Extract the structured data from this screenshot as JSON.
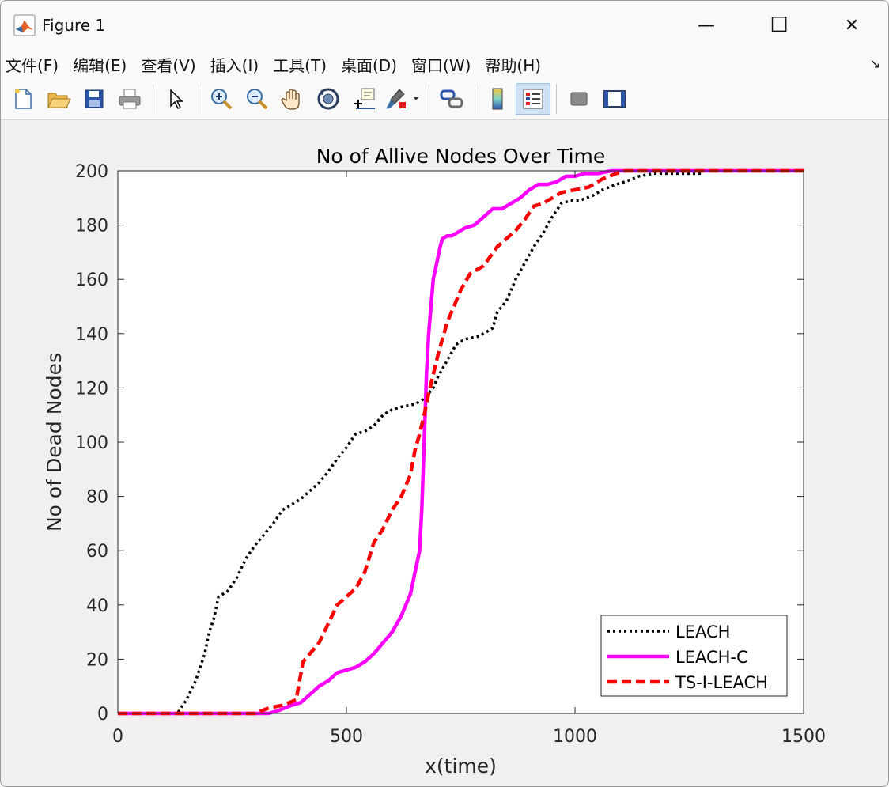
{
  "window": {
    "title": "Figure 1",
    "minimize_label": "—",
    "maximize_label": "☐",
    "close_label": "✕"
  },
  "menu": {
    "items": [
      "文件(F)",
      "编辑(E)",
      "查看(V)",
      "插入(I)",
      "工具(T)",
      "桌面(D)",
      "窗口(W)",
      "帮助(H)"
    ],
    "dock_arrow": "↘"
  },
  "toolbar": {
    "icons": [
      "new-figure-icon",
      "open-file-icon",
      "save-icon",
      "print-icon",
      "edit-plot-arrow-icon",
      "zoom-in-icon",
      "zoom-out-icon",
      "pan-hand-icon",
      "rotate-3d-icon",
      "data-cursor-icon",
      "brush-icon",
      "link-plot-icon",
      "colorbar-icon",
      "legend-icon",
      "hide-plot-tools-icon",
      "show-plot-tools-icon"
    ]
  },
  "colors": {
    "leach": "#000000",
    "leach_c": "#ff00ff",
    "ts_i_leach": "#ff0000",
    "axes_bg": "#ffffff",
    "figure_bg": "#f0f0f0"
  },
  "chart_data": {
    "type": "line",
    "title": "No of Allive Nodes Over Time",
    "xlabel": "x(time)",
    "ylabel": "No of Dead Nodes",
    "xlim": [
      0,
      1500
    ],
    "ylim": [
      0,
      200
    ],
    "xticks": [
      0,
      500,
      1000,
      1500
    ],
    "yticks": [
      0,
      20,
      40,
      60,
      80,
      100,
      120,
      140,
      160,
      180,
      200
    ],
    "grid": false,
    "legend_position": "bottom-right",
    "series": [
      {
        "name": "LEACH",
        "style": "dotted",
        "color": "#000000",
        "x": [
          0,
          130,
          150,
          170,
          190,
          200,
          210,
          220,
          240,
          260,
          280,
          300,
          320,
          340,
          360,
          380,
          400,
          420,
          440,
          460,
          480,
          500,
          520,
          540,
          560,
          580,
          600,
          620,
          650,
          670,
          690,
          700,
          720,
          740,
          760,
          790,
          820,
          830,
          850,
          870,
          890,
          910,
          930,
          950,
          970,
          990,
          1010,
          1040,
          1060,
          1090,
          1110,
          1140,
          1170,
          1200,
          1230,
          1280
        ],
        "y": [
          0,
          0,
          5,
          12,
          22,
          30,
          35,
          43,
          45,
          50,
          57,
          62,
          66,
          70,
          75,
          77,
          79,
          82,
          85,
          89,
          94,
          98,
          103,
          104,
          106,
          110,
          112,
          113,
          114,
          116,
          120,
          124,
          130,
          136,
          138,
          139,
          142,
          148,
          152,
          160,
          166,
          172,
          177,
          183,
          188,
          189,
          189,
          191,
          193,
          195,
          196,
          198,
          199,
          199,
          199,
          199
        ]
      },
      {
        "name": "LEACH-C",
        "style": "solid",
        "color": "#ff00ff",
        "x": [
          0,
          330,
          350,
          380,
          400,
          420,
          440,
          460,
          480,
          500,
          520,
          540,
          560,
          580,
          600,
          620,
          640,
          650,
          660,
          665,
          670,
          675,
          680,
          685,
          690,
          700,
          705,
          710,
          720,
          730,
          740,
          760,
          780,
          800,
          820,
          840,
          860,
          880,
          900,
          920,
          940,
          960,
          980,
          1000,
          1020,
          1050,
          1080,
          1100,
          1150,
          1200,
          1500
        ],
        "y": [
          0,
          0,
          1,
          3,
          4,
          7,
          10,
          12,
          15,
          16,
          17,
          19,
          22,
          26,
          30,
          36,
          44,
          52,
          60,
          76,
          100,
          125,
          140,
          150,
          160,
          168,
          172,
          175,
          176,
          176,
          177,
          179,
          180,
          183,
          186,
          186,
          188,
          190,
          193,
          195,
          195,
          196,
          198,
          198,
          199,
          199,
          200,
          200,
          200,
          200,
          200
        ]
      },
      {
        "name": "TS-I-LEACH",
        "style": "dashed",
        "color": "#ff0000",
        "x": [
          0,
          300,
          330,
          360,
          390,
          405,
          420,
          440,
          460,
          480,
          500,
          520,
          540,
          560,
          580,
          600,
          620,
          640,
          650,
          660,
          670,
          680,
          690,
          700,
          710,
          720,
          730,
          750,
          770,
          800,
          830,
          850,
          870,
          890,
          910,
          930,
          950,
          970,
          1000,
          1030,
          1060,
          1090,
          1110,
          1150,
          1500
        ],
        "y": [
          0,
          0,
          2,
          3,
          5,
          19,
          22,
          26,
          33,
          40,
          43,
          46,
          52,
          63,
          68,
          75,
          80,
          88,
          97,
          103,
          110,
          118,
          125,
          132,
          138,
          144,
          148,
          156,
          162,
          165,
          172,
          175,
          178,
          182,
          187,
          188,
          190,
          192,
          193,
          194,
          197,
          199,
          200,
          200,
          200
        ]
      }
    ]
  }
}
